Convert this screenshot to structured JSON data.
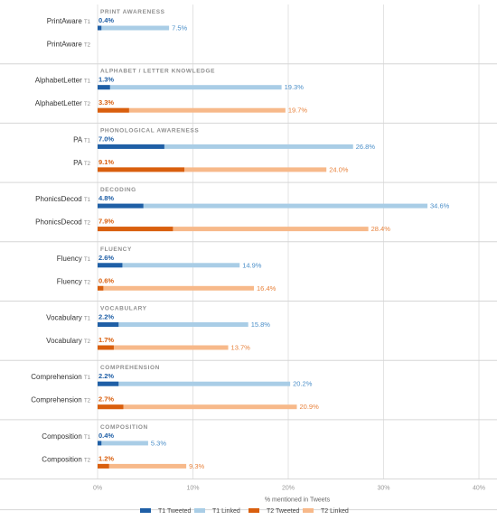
{
  "chart_data": {
    "type": "bar",
    "orientation": "horizontal",
    "xlabel": "% mentioned in Tweets",
    "xlim": [
      0,
      40
    ],
    "x_ticks": [
      "0%",
      "10%",
      "20%",
      "30%",
      "40%"
    ],
    "grid": true,
    "legend_position": "bottom",
    "legend": [
      {
        "label": "T1 Tweeted",
        "color": "#1f5fa6"
      },
      {
        "label": "T1 Linked",
        "color": "#a9cde6"
      },
      {
        "label": "T2 Tweeted",
        "color": "#d95f0e"
      },
      {
        "label": "T2 Linked",
        "color": "#f7b98a"
      }
    ],
    "groups": [
      {
        "title": "PRINT AWARENESS",
        "rows": [
          {
            "label": "PrintAware",
            "time": "T1",
            "tweeted": 0.4,
            "tweeted_label": "0.4%",
            "linked": 7.5,
            "linked_label": "7.5%"
          },
          {
            "label": "PrintAware",
            "time": "T2",
            "tweeted": null,
            "tweeted_label": "",
            "linked": null,
            "linked_label": ""
          }
        ]
      },
      {
        "title": "ALPHABET / LETTER KNOWLEDGE",
        "rows": [
          {
            "label": "AlphabetLetter",
            "time": "T1",
            "tweeted": 1.3,
            "tweeted_label": "1.3%",
            "linked": 19.3,
            "linked_label": "19.3%"
          },
          {
            "label": "AlphabetLetter",
            "time": "T2",
            "tweeted": 3.3,
            "tweeted_label": "3.3%",
            "linked": 19.7,
            "linked_label": "19.7%"
          }
        ]
      },
      {
        "title": "PHONOLOGICAL AWARENESS",
        "rows": [
          {
            "label": "PA",
            "time": "T1",
            "tweeted": 7.0,
            "tweeted_label": "7.0%",
            "linked": 26.8,
            "linked_label": "26.8%"
          },
          {
            "label": "PA",
            "time": "T2",
            "tweeted": 9.1,
            "tweeted_label": "9.1%",
            "linked": 24.0,
            "linked_label": "24.0%"
          }
        ]
      },
      {
        "title": "DECODING",
        "rows": [
          {
            "label": "PhonicsDecod",
            "time": "T1",
            "tweeted": 4.8,
            "tweeted_label": "4.8%",
            "linked": 34.6,
            "linked_label": "34.6%"
          },
          {
            "label": "PhonicsDecod",
            "time": "T2",
            "tweeted": 7.9,
            "tweeted_label": "7.9%",
            "linked": 28.4,
            "linked_label": "28.4%"
          }
        ]
      },
      {
        "title": "FLUENCY",
        "rows": [
          {
            "label": "Fluency",
            "time": "T1",
            "tweeted": 2.6,
            "tweeted_label": "2.6%",
            "linked": 14.9,
            "linked_label": "14.9%"
          },
          {
            "label": "Fluency",
            "time": "T2",
            "tweeted": 0.6,
            "tweeted_label": "0.6%",
            "linked": 16.4,
            "linked_label": "16.4%"
          }
        ]
      },
      {
        "title": "VOCABULARY",
        "rows": [
          {
            "label": "Vocabulary",
            "time": "T1",
            "tweeted": 2.2,
            "tweeted_label": "2.2%",
            "linked": 15.8,
            "linked_label": "15.8%"
          },
          {
            "label": "Vocabulary",
            "time": "T2",
            "tweeted": 1.7,
            "tweeted_label": "1.7%",
            "linked": 13.7,
            "linked_label": "13.7%"
          }
        ]
      },
      {
        "title": "COMPREHENSION",
        "rows": [
          {
            "label": "Comprehension",
            "time": "T1",
            "tweeted": 2.2,
            "tweeted_label": "2.2%",
            "linked": 20.2,
            "linked_label": "20.2%"
          },
          {
            "label": "Comprehension",
            "time": "T2",
            "tweeted": 2.7,
            "tweeted_label": "2.7%",
            "linked": 20.9,
            "linked_label": "20.9%"
          }
        ]
      },
      {
        "title": "COMPOSITION",
        "rows": [
          {
            "label": "Composition",
            "time": "T1",
            "tweeted": 0.4,
            "tweeted_label": "0.4%",
            "linked": 5.3,
            "linked_label": "5.3%"
          },
          {
            "label": "Composition",
            "time": "T2",
            "tweeted": 1.2,
            "tweeted_label": "1.2%",
            "linked": 9.3,
            "linked_label": "9.3%"
          }
        ]
      }
    ]
  }
}
